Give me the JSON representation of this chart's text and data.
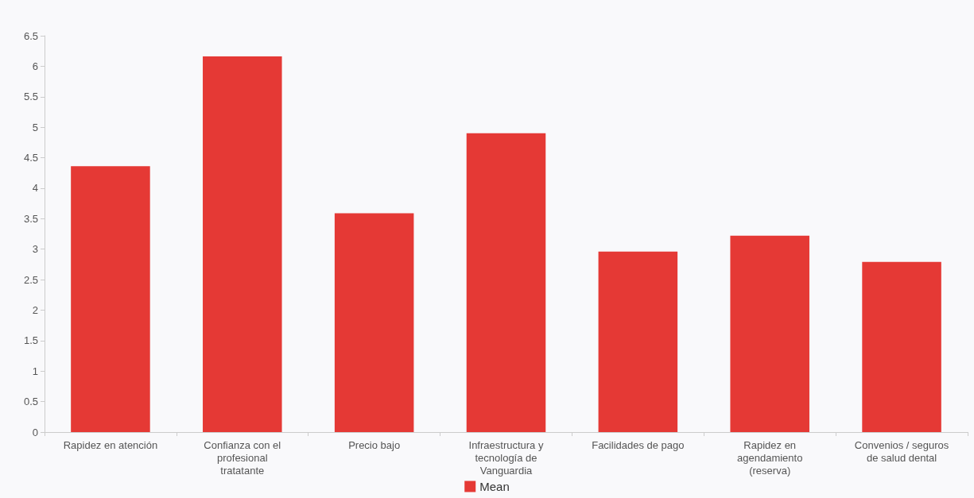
{
  "chart_data": {
    "type": "bar",
    "categories": [
      "Rapidez en atención",
      "Confianza con el profesional tratatante",
      "Precio bajo",
      "Infraestructura y tecnología de Vanguardia",
      "Facilidades de pago",
      "Rapidez en agendamiento (reserva)",
      "Convenios / seguros de salud dental"
    ],
    "series": [
      {
        "name": "Mean",
        "color": "#e53935",
        "values": [
          4.36,
          6.16,
          3.59,
          4.9,
          2.96,
          3.22,
          2.79
        ]
      }
    ],
    "ylim": [
      0,
      6.5
    ],
    "yticks": [
      0,
      0.5,
      1,
      1.5,
      2,
      2.5,
      3,
      3.5,
      4,
      4.5,
      5,
      5.5,
      6,
      6.5
    ],
    "grid": false,
    "legend": "bottom"
  }
}
